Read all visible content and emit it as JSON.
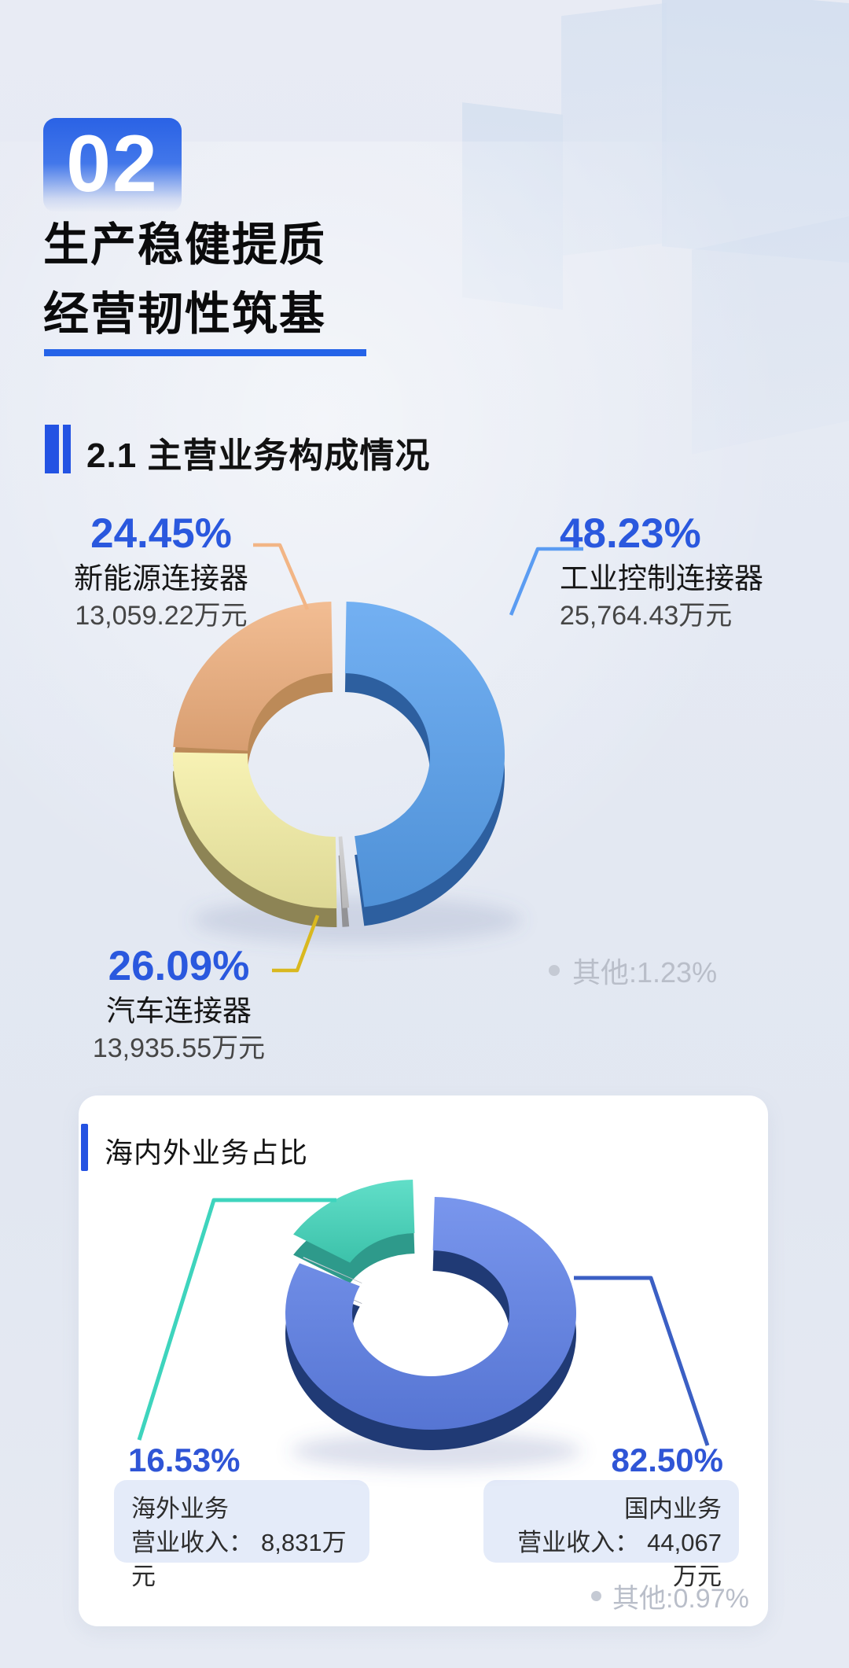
{
  "header": {
    "badge_number": "02",
    "title_line1": "生产稳健提质",
    "title_line2": "经营韧性筑基"
  },
  "section": {
    "heading": "2.1 主营业务构成情况"
  },
  "card": {
    "title": "海内外业务占比",
    "revenue_label": "营业收入："
  },
  "colors": {
    "accent_blue": "#2a58de",
    "heading_bar_blue": "#2353e3",
    "card_bg": "#ffffff",
    "info_box_bg": "#e4ebf9",
    "other_note_gray": "#b9bec9"
  },
  "chart_data": [
    {
      "type": "pie",
      "variant": "3d-donut",
      "title": "主营业务构成情况",
      "unit": "万元",
      "legend_note": "其他:1.23%",
      "slices": [
        {
          "label": "工业控制连接器",
          "pct": 48.23,
          "pct_text": "48.23%",
          "value": 25764.43,
          "value_text": "25,764.43万元",
          "color": "#58a1ef",
          "side_color": "#2d5f9f",
          "explode_dx": 12,
          "explode_dy": 0
        },
        {
          "label": "其他",
          "pct": 1.23,
          "pct_text": "1.23%",
          "color": "#cccccd",
          "side_color": "#939396"
        },
        {
          "label": "汽车连接器",
          "pct": 26.09,
          "pct_text": "26.09%",
          "value": 13935.55,
          "value_text": "13,935.55万元",
          "color": "#f6f0a6",
          "side_color": "#8d8455"
        },
        {
          "label": "新能源连接器",
          "pct": 24.45,
          "pct_text": "24.45%",
          "value": 13059.22,
          "value_text": "13,059.22万元",
          "color": "#f0b07e",
          "side_color": "#bc8a58"
        }
      ]
    },
    {
      "type": "pie",
      "variant": "3d-donut",
      "title": "海内外业务占比",
      "legend_note": "其他:0.97%",
      "slices": [
        {
          "label": "国内业务",
          "pct": 82.5,
          "pct_text": "82.50%",
          "revenue_text": "44,067万元",
          "color": "#5f82ea",
          "side_color": "#203a75"
        },
        {
          "label": "其他",
          "pct": 0.97,
          "pct_text": "0.97%",
          "color": "#c9cfd8",
          "side_color": "#9aa0ad"
        },
        {
          "label": "海外业务",
          "pct": 16.53,
          "pct_text": "16.53%",
          "revenue_text": "8,831万元",
          "color": "#43d8bd",
          "side_color": "#2e9a8b",
          "explode_dx": -18,
          "explode_dy": -22
        }
      ]
    }
  ]
}
